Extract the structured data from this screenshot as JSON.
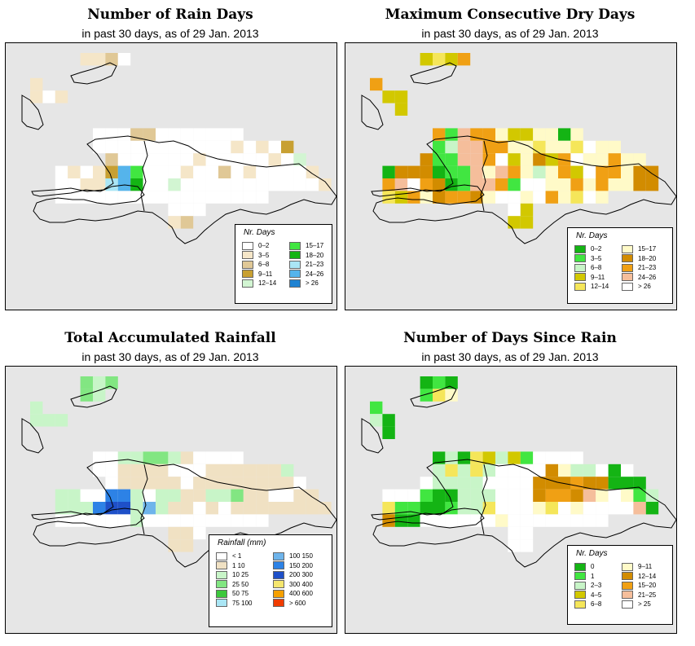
{
  "panels": [
    {
      "id": "rain-days",
      "title": "Number of Rain Days",
      "subtitle": "in past 30 days, as of  29 Jan. 2013",
      "legend": {
        "title": "Nr. Days",
        "items": [
          {
            "label": "0–2",
            "color": "#ffffff"
          },
          {
            "label": "3–5",
            "color": "#f5e6c8"
          },
          {
            "label": "6–8",
            "color": "#e0c896"
          },
          {
            "label": "9–11",
            "color": "#c8a032"
          },
          {
            "label": "12–14",
            "color": "#d2f5d2"
          },
          {
            "label": "15–17",
            "color": "#41e641"
          },
          {
            "label": "18–20",
            "color": "#14b414"
          },
          {
            "label": "21–23",
            "color": "#aae6f5"
          },
          {
            "label": "24–26",
            "color": "#55b4eb"
          },
          {
            "label": "> 26",
            "color": "#1e82d2"
          }
        ]
      }
    },
    {
      "id": "max-dry-days",
      "title": "Maximum Consecutive Dry Days",
      "subtitle": "in past 30 days, as of  29 Jan. 2013",
      "legend": {
        "title": "Nr. Days",
        "items": [
          {
            "label": "0–2",
            "color": "#14b414"
          },
          {
            "label": "3–5",
            "color": "#41e641"
          },
          {
            "label": "6–8",
            "color": "#c8f5c8"
          },
          {
            "label": "9–11",
            "color": "#d2c800"
          },
          {
            "label": "12–14",
            "color": "#f5e65a"
          },
          {
            "label": "15–17",
            "color": "#fffac8"
          },
          {
            "label": "18–20",
            "color": "#d28c00"
          },
          {
            "label": "21–23",
            "color": "#f0a014"
          },
          {
            "label": "24–26",
            "color": "#f5be9b"
          },
          {
            "label": "> 26",
            "color": "#ffffff"
          }
        ]
      }
    },
    {
      "id": "total-rainfall",
      "title": "Total Accumulated Rainfall",
      "subtitle": "in past 30 days, as of  29 Jan. 2013",
      "legend": {
        "title": "Rainfall (mm)",
        "items": [
          {
            "label": "     < 1",
            "color": "#ffffff"
          },
          {
            "label": "1    10",
            "color": "#f0e1c3"
          },
          {
            "label": "10   25",
            "color": "#c8f5c8"
          },
          {
            "label": "25   50",
            "color": "#82e682"
          },
          {
            "label": "50   75",
            "color": "#3cc83c"
          },
          {
            "label": "75  100",
            "color": "#aae6f5"
          },
          {
            "label": "100  150",
            "color": "#6eb4eb"
          },
          {
            "label": "150  200",
            "color": "#2d82e6"
          },
          {
            "label": "200  300",
            "color": "#1e50c8"
          },
          {
            "label": "300  400",
            "color": "#f5e66e"
          },
          {
            "label": "400  600",
            "color": "#f5a000"
          },
          {
            "label": "> 600",
            "color": "#f03c00"
          }
        ]
      }
    },
    {
      "id": "days-since-rain",
      "title": "Number of Days Since Rain",
      "subtitle": "in past 30 days, as of  29 Jan. 2013",
      "legend": {
        "title": "Nr. Days",
        "items": [
          {
            "label": "0",
            "color": "#14b414"
          },
          {
            "label": "1",
            "color": "#41e641"
          },
          {
            "label": "2–3",
            "color": "#c8f5c8"
          },
          {
            "label": "4–5",
            "color": "#d2c800"
          },
          {
            "label": "6–8",
            "color": "#f5e65a"
          },
          {
            "label": "9–11",
            "color": "#fffac8"
          },
          {
            "label": "12–14",
            "color": "#d28c00"
          },
          {
            "label": "15–20",
            "color": "#f0a014"
          },
          {
            "label": "21–25",
            "color": "#f5be9b"
          },
          {
            "label": "> 25",
            "color": "#ffffff"
          }
        ]
      }
    }
  ]
}
